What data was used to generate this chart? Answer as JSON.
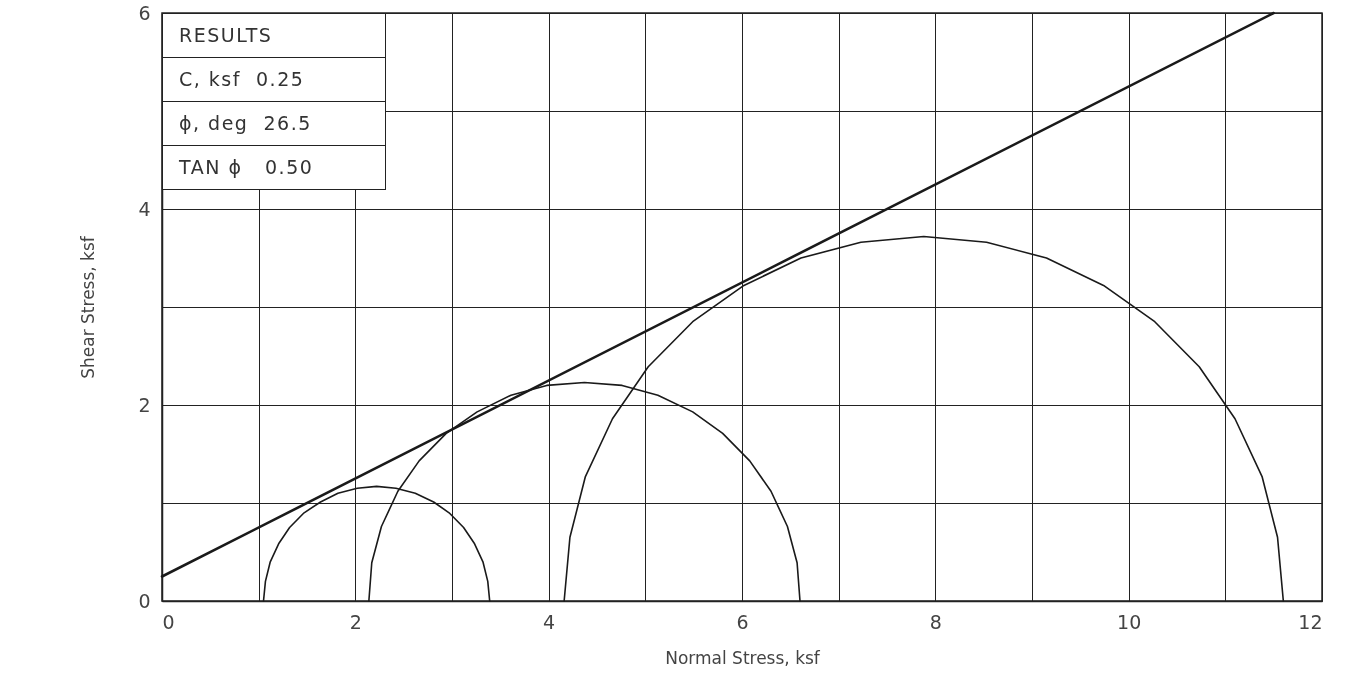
{
  "chart_data": {
    "type": "line",
    "xlabel": "Normal Stress, ksf",
    "ylabel": "Shear Stress, ksf",
    "xlim": [
      0,
      12
    ],
    "ylim": [
      0,
      6
    ],
    "xticks": [
      0,
      {
        "value": 1,
        "label": null
      },
      2,
      {
        "value": 3,
        "label": null
      },
      4,
      {
        "value": 5,
        "label": null
      },
      6,
      {
        "value": 7,
        "label": null
      },
      8,
      {
        "value": 9,
        "label": null
      },
      10,
      {
        "value": 11,
        "label": null
      },
      12
    ],
    "yticks": [
      0,
      {
        "value": 1,
        "label": null
      },
      2,
      {
        "value": 3,
        "label": null
      },
      4,
      {
        "value": 5,
        "label": null
      },
      6
    ],
    "grid": true,
    "marker": "none",
    "line_style": "solid",
    "annotations": [
      "RESULTS",
      "C, ksf  0.25",
      "ϕ, deg  26.5",
      "TAN ϕ   0.50"
    ],
    "series": [
      {
        "color": "#1a1a1a",
        "x": [
          0,
          11.5
        ],
        "values": [
          0.25,
          6.0
        ]
      },
      {
        "color": "#1a1a1a",
        "x": [
          1.05,
          1.07,
          1.12,
          1.21,
          1.32,
          1.47,
          1.64,
          1.82,
          2.02,
          2.22,
          2.42,
          2.62,
          2.81,
          2.97,
          3.12,
          3.23,
          3.32,
          3.37,
          3.39
        ],
        "values": [
          0,
          0.2,
          0.4,
          0.59,
          0.75,
          0.9,
          1.01,
          1.1,
          1.15,
          1.17,
          1.15,
          1.1,
          1.01,
          0.9,
          0.75,
          0.59,
          0.4,
          0.2,
          0
        ]
      },
      {
        "color": "#1a1a1a",
        "x": [
          2.14,
          2.17,
          2.27,
          2.44,
          2.66,
          2.94,
          3.26,
          3.61,
          3.98,
          4.37,
          4.76,
          5.13,
          5.49,
          5.8,
          6.08,
          6.3,
          6.47,
          6.57,
          6.6
        ],
        "values": [
          0,
          0.39,
          0.76,
          1.12,
          1.43,
          1.71,
          1.93,
          2.1,
          2.2,
          2.23,
          2.2,
          2.1,
          1.93,
          1.71,
          1.43,
          1.12,
          0.76,
          0.39,
          0
        ]
      },
      {
        "color": "#1a1a1a",
        "x": [
          4.16,
          4.22,
          4.38,
          4.66,
          5.03,
          5.49,
          6.02,
          6.61,
          7.23,
          7.88,
          8.53,
          9.15,
          9.74,
          10.27,
          10.73,
          11.1,
          11.38,
          11.54,
          11.6
        ],
        "values": [
          0,
          0.65,
          1.27,
          1.86,
          2.39,
          2.85,
          3.22,
          3.5,
          3.66,
          3.72,
          3.66,
          3.5,
          3.22,
          2.85,
          2.39,
          1.86,
          1.27,
          0.65,
          0
        ]
      }
    ]
  }
}
